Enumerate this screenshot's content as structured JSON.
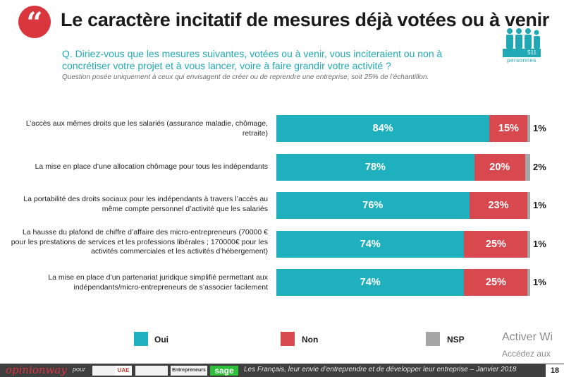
{
  "title": "Le caractère incitatif de mesures déjà votées ou à venir",
  "question": "Q. Diriez-vous que les mesures suivantes, votées ou à venir, vous inciteraient ou non à concrétiser votre projet et à vous lancer, voire à faire grandir votre activité ?",
  "note": "Question posée uniquement à ceux qui envisagent de créer ou de reprendre une entreprise, soit 25% de l’échantillon.",
  "sample": {
    "count": "511",
    "label": "personnes"
  },
  "quote_icon": "quote-icon",
  "colors": {
    "oui": "#1fb0bd",
    "non": "#d8484f",
    "nsp": "#a6a6a6",
    "accent": "#d9363e",
    "teal": "#20a9b4"
  },
  "chart_data": {
    "type": "bar",
    "orientation": "horizontal-stacked-100",
    "categories": [
      "L’accès aux mêmes droits que les salariés (assurance maladie, chômage, retraite)",
      "La mise en place d’une allocation chômage pour tous les indépendants",
      "La portabilité des droits sociaux pour les indépendants à travers l’accès au même compte personnel d’activité que les salariés",
      "La hausse du plafond de chiffre d’affaire des micro-entrepreneurs (70000 € pour les prestations de services et les professions libérales ; 170000€ pour les activités commerciales et les activités d’hébergement)",
      "La mise en place d’un partenariat juridique simplifié permettant aux indépendants/micro-entrepreneurs de s’associer facilement"
    ],
    "series": [
      {
        "name": "Oui",
        "values": [
          84,
          78,
          76,
          74,
          74
        ]
      },
      {
        "name": "Non",
        "values": [
          15,
          20,
          23,
          25,
          25
        ]
      },
      {
        "name": "NSP",
        "values": [
          1,
          2,
          1,
          1,
          1
        ]
      }
    ],
    "labels": {
      "Oui": [
        "84%",
        "78%",
        "76%",
        "74%",
        "74%"
      ],
      "Non": [
        "15%",
        "20%",
        "23%",
        "25%",
        "25%"
      ],
      "NSP": [
        "1%",
        "2%",
        "1%",
        "1%",
        "1%"
      ]
    },
    "xlim": [
      0,
      100
    ],
    "legend": [
      "Oui",
      "Non",
      "NSP"
    ],
    "legend_position": "bottom"
  },
  "watermark": {
    "line1": "Activer Wi",
    "line2": "Accédez aux"
  },
  "footer": {
    "brand": "opinionway",
    "pour": "pour",
    "logo1": "",
    "logo2": "UAE",
    "logo3": "",
    "logo4": "Entrepreneurs",
    "logo5": "sage",
    "text": "Les Français, leur envie d’entreprendre et de développer leur entreprise – Janvier 2018",
    "page": "18"
  }
}
